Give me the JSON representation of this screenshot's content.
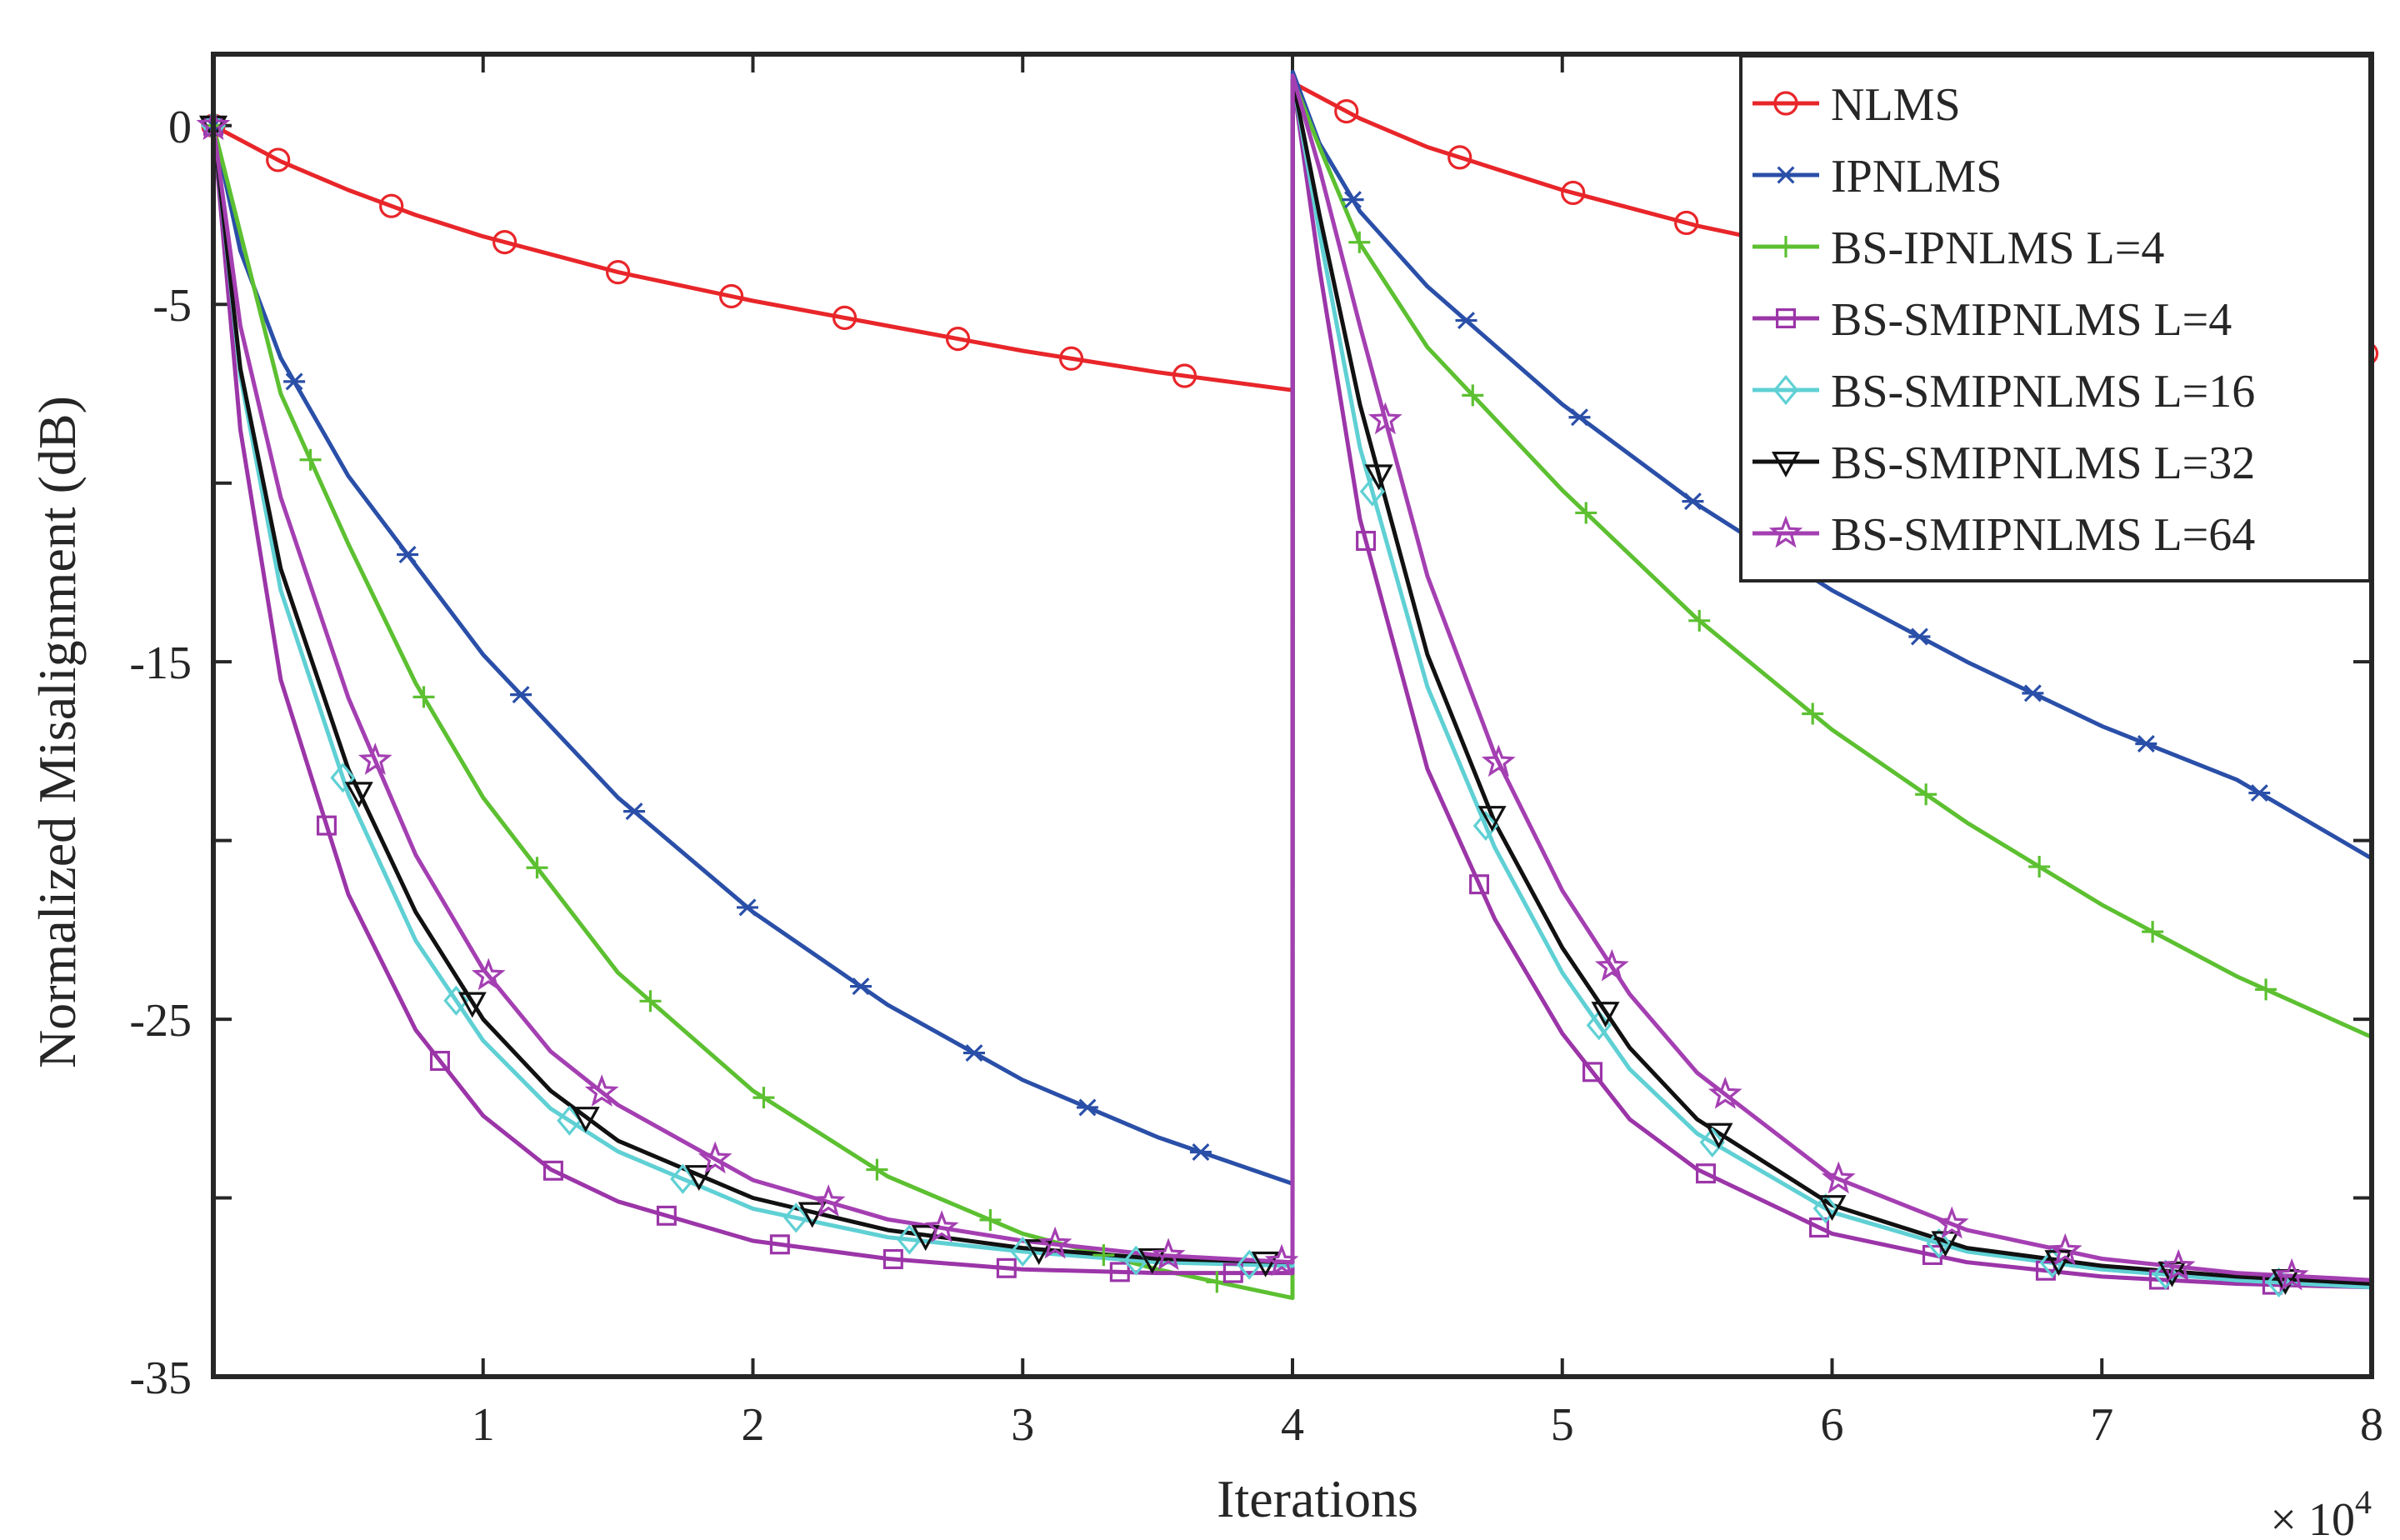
{
  "chart_data": {
    "type": "line",
    "title": "",
    "xlabel": "Iterations",
    "ylabel": "Normalized Misalignment (dB)",
    "x_exponent_label": "× 10",
    "x_exponent_power": "4",
    "xlim": [
      0,
      8
    ],
    "ylim": [
      -35,
      2
    ],
    "xticks": [
      1,
      2,
      3,
      4,
      5,
      6,
      7,
      8
    ],
    "yticks": [
      0,
      -5,
      -10,
      -15,
      -20,
      -25,
      -30,
      -35
    ],
    "ytick_labels": [
      "0",
      "-5",
      "",
      "-15",
      "",
      "-25",
      "",
      "-35"
    ],
    "grid": false,
    "legend_position": "top-right",
    "x_unit_scale": "10^4",
    "series": [
      {
        "name": "NLMS",
        "color": "#e8262a",
        "marker": "circle",
        "x": [
          0,
          0.25,
          0.5,
          0.75,
          1,
          1.5,
          2,
          2.5,
          3,
          3.5,
          4,
          4.001,
          4.25,
          4.5,
          5,
          5.5,
          6,
          6.5,
          7,
          7.5,
          8
        ],
        "y": [
          0,
          -1.0,
          -1.8,
          -2.5,
          -3.1,
          -4.1,
          -4.9,
          -5.6,
          -6.3,
          -6.9,
          -7.4,
          1.2,
          0.2,
          -0.6,
          -1.8,
          -2.8,
          -3.6,
          -4.4,
          -5.1,
          -5.8,
          -6.4
        ]
      },
      {
        "name": "IPNLMS",
        "color": "#2a4fa8",
        "marker": "asterisk",
        "x": [
          0,
          0.1,
          0.25,
          0.5,
          0.75,
          1,
          1.5,
          2,
          2.5,
          3,
          3.5,
          4,
          4.001,
          4.1,
          4.25,
          4.5,
          5,
          5.5,
          6,
          6.5,
          7,
          7.5,
          8
        ],
        "y": [
          0,
          -3.5,
          -6.5,
          -9.8,
          -12.3,
          -14.8,
          -18.8,
          -22.0,
          -24.6,
          -26.7,
          -28.3,
          -29.6,
          1.5,
          -0.5,
          -2.4,
          -4.5,
          -7.8,
          -10.6,
          -13.0,
          -15.0,
          -16.8,
          -18.3,
          -20.5
        ]
      },
      {
        "name": "BS-IPNLMS L=4",
        "color": "#5cc031",
        "marker": "plus",
        "x": [
          0,
          0.1,
          0.25,
          0.5,
          0.75,
          1,
          1.5,
          2,
          2.5,
          3,
          3.5,
          4,
          4.001,
          4.1,
          4.25,
          4.5,
          5,
          5.5,
          6,
          6.5,
          7,
          7.5,
          8
        ],
        "y": [
          0,
          -3.0,
          -7.5,
          -11.7,
          -15.6,
          -18.8,
          -23.7,
          -27.0,
          -29.4,
          -31.0,
          -32.0,
          -32.8,
          1.3,
          -0.6,
          -3.3,
          -6.2,
          -10.2,
          -13.8,
          -16.9,
          -19.5,
          -21.8,
          -23.8,
          -25.5
        ]
      },
      {
        "name": "BS-SMIPNLMS L=4",
        "color": "#9b35a8",
        "marker": "square",
        "x": [
          0,
          0.1,
          0.25,
          0.5,
          0.75,
          1,
          1.25,
          1.5,
          2,
          2.5,
          3,
          3.5,
          4,
          4.001,
          4.1,
          4.25,
          4.5,
          4.75,
          5,
          5.25,
          5.5,
          6,
          6.5,
          7,
          7.5,
          8
        ],
        "y": [
          0,
          -8.5,
          -15.5,
          -21.5,
          -25.3,
          -27.7,
          -29.2,
          -30.1,
          -31.2,
          -31.7,
          -32.0,
          -32.1,
          -32.1,
          1.3,
          -4.0,
          -11.0,
          -18.0,
          -22.2,
          -25.4,
          -27.8,
          -29.2,
          -31.0,
          -31.8,
          -32.2,
          -32.4,
          -32.5
        ]
      },
      {
        "name": "BS-SMIPNLMS L=16",
        "color": "#5fd0d4",
        "marker": "diamond",
        "x": [
          0,
          0.1,
          0.25,
          0.5,
          0.75,
          1,
          1.25,
          1.5,
          2,
          2.5,
          3,
          3.5,
          4,
          4.001,
          4.1,
          4.25,
          4.5,
          4.75,
          5,
          5.25,
          5.5,
          6,
          6.5,
          7,
          7.5,
          8
        ],
        "y": [
          0,
          -7.0,
          -13.0,
          -18.7,
          -22.8,
          -25.6,
          -27.5,
          -28.7,
          -30.3,
          -31.1,
          -31.5,
          -31.8,
          -31.9,
          1.3,
          -3.0,
          -9.0,
          -15.7,
          -20.2,
          -23.7,
          -26.4,
          -28.2,
          -30.4,
          -31.5,
          -32.0,
          -32.3,
          -32.5
        ]
      },
      {
        "name": "BS-SMIPNLMS L=32",
        "color": "#111111",
        "marker": "triangle-down",
        "x": [
          0,
          0.1,
          0.25,
          0.5,
          0.75,
          1,
          1.25,
          1.5,
          2,
          2.5,
          3,
          3.5,
          4,
          4.001,
          4.1,
          4.25,
          4.5,
          4.75,
          5,
          5.25,
          5.5,
          6,
          6.5,
          7,
          7.5,
          8
        ],
        "y": [
          0,
          -6.8,
          -12.4,
          -18.0,
          -22.0,
          -25.0,
          -27.0,
          -28.4,
          -30.0,
          -30.9,
          -31.4,
          -31.7,
          -31.8,
          1.3,
          -2.5,
          -7.8,
          -14.8,
          -19.5,
          -23.0,
          -25.8,
          -27.8,
          -30.2,
          -31.4,
          -31.9,
          -32.2,
          -32.4
        ]
      },
      {
        "name": "BS-SMIPNLMS L=64",
        "color": "#a43fb2",
        "marker": "pentagram",
        "x": [
          0,
          0.1,
          0.25,
          0.5,
          0.75,
          1,
          1.25,
          1.5,
          2,
          2.5,
          3,
          3.5,
          4,
          4.001,
          4.1,
          4.25,
          4.5,
          4.75,
          5,
          5.25,
          5.5,
          6,
          6.5,
          7,
          7.5,
          8
        ],
        "y": [
          0,
          -5.6,
          -10.4,
          -16.0,
          -20.4,
          -23.6,
          -25.9,
          -27.4,
          -29.5,
          -30.6,
          -31.2,
          -31.6,
          -31.8,
          1.4,
          -1.2,
          -5.6,
          -12.6,
          -17.6,
          -21.4,
          -24.3,
          -26.5,
          -29.4,
          -30.9,
          -31.7,
          -32.1,
          -32.3
        ]
      }
    ]
  }
}
